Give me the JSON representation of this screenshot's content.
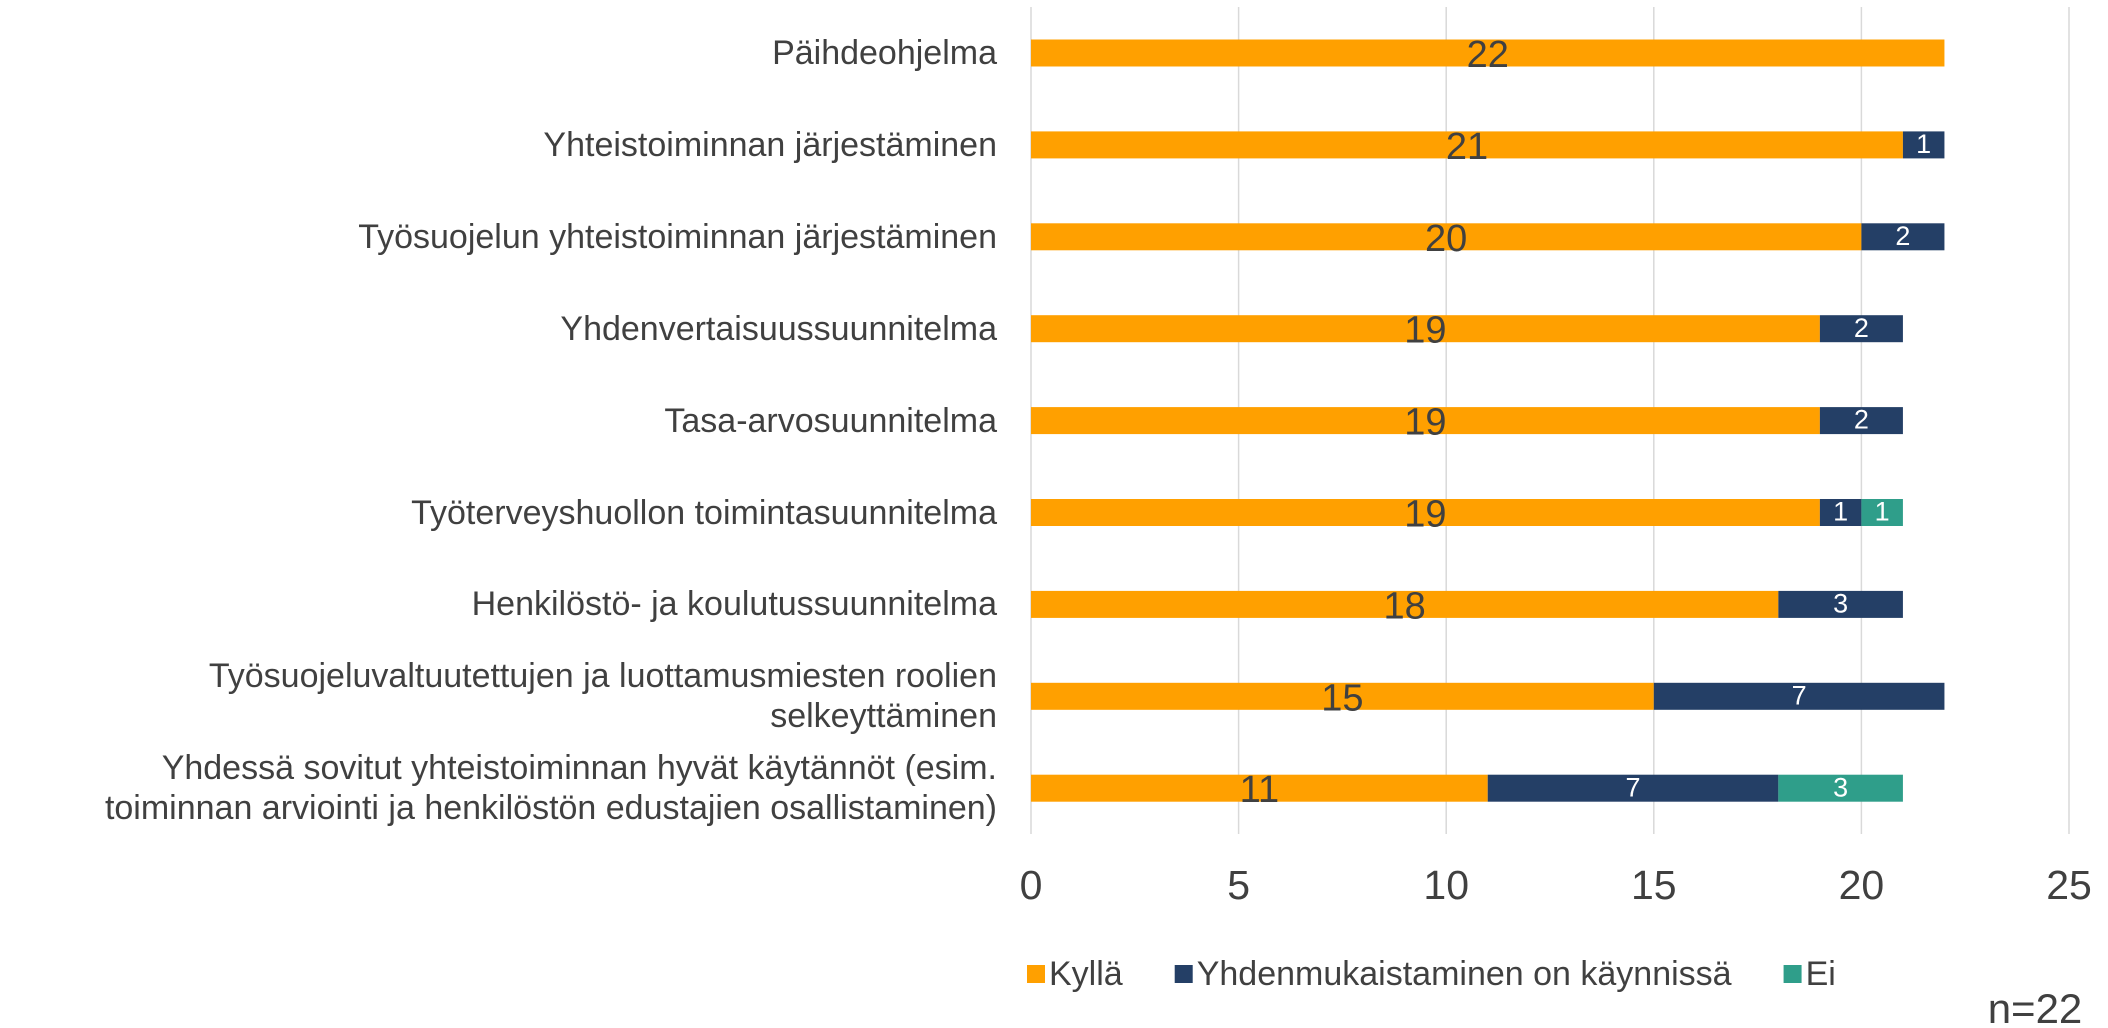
{
  "chart_data": {
    "type": "stacked-barh",
    "categories": [
      "Päihdeohjelma",
      "Yhteistoiminnan järjestäminen",
      "Työsuojelun yhteistoiminnan järjestäminen",
      "Yhdenvertaisuussuunnitelma",
      "Tasa-arvosuunnitelma",
      "Työterveyshuollon toimintasuunnitelma",
      "Henkilöstö- ja koulutussuunnitelma",
      "Työsuojeluvaltuutettujen ja luottamusmiesten roolien selkeyttäminen",
      "Yhdessä sovitut yhteistoiminnan hyvät käytännöt (esim. toiminnan arviointi ja henkilöstön edustajien osallistaminen)"
    ],
    "series": [
      {
        "name": "Kyllä",
        "color": "#ffa000",
        "values": [
          22,
          21,
          20,
          19,
          19,
          19,
          18,
          15,
          11
        ]
      },
      {
        "name": "Yhdenmukaistaminen on käynnissä",
        "color": "#243f66",
        "values": [
          null,
          1,
          2,
          2,
          2,
          1,
          3,
          7,
          7
        ]
      },
      {
        "name": "Ei",
        "color": "#2f9e8a",
        "values": [
          null,
          null,
          null,
          null,
          null,
          1,
          null,
          null,
          3
        ]
      }
    ],
    "xlim": [
      0,
      25
    ],
    "xticks": [
      0,
      5,
      10,
      15,
      20,
      25
    ],
    "grid": true,
    "legend": "bottom",
    "annotation": "n=22"
  }
}
